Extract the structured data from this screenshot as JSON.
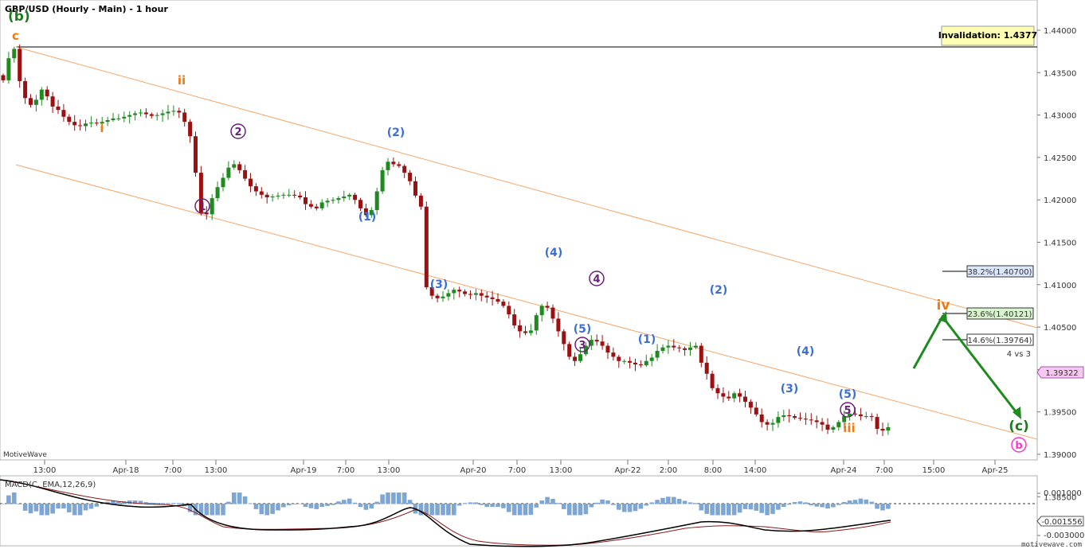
{
  "chart_data": {
    "type": "candlestick",
    "title": "GBP/USD (Hourly - Main) - 1 hour",
    "watermark": "MotiveWave",
    "footer": "motivewave.com",
    "invalidation_label": "Invalidation:  1.4377",
    "current_price_label": "1.39322",
    "y_ticks": [
      "1.44000",
      "1.43500",
      "1.43000",
      "1.42500",
      "1.42000",
      "1.41500",
      "1.41000",
      "1.40500",
      "1.40000",
      "1.39500",
      "1.39000",
      "1.38500"
    ],
    "x_ticks": [
      "13:00",
      "Apr-18",
      "7:00",
      "13:00",
      "Apr-19",
      "7:00",
      "13:00",
      "Apr-20",
      "7:00",
      "13:00",
      "Apr-22",
      "2:00",
      "8:00",
      "14:00",
      "Apr-24",
      "7:00",
      "15:00",
      "Apr-25"
    ],
    "fib_levels": [
      {
        "label": "38.2%(1.40700)",
        "price": 1.407
      },
      {
        "label": "23.6%(1.40121)",
        "price": 1.40121
      },
      {
        "label": "14.6%(1.39764)",
        "price": 1.39764
      }
    ],
    "fib_note": "4 vs 3",
    "closes": [
      1.4341,
      1.4367,
      1.4378,
      1.434,
      1.432,
      1.4312,
      1.4318,
      1.433,
      1.4322,
      1.431,
      1.4306,
      1.4298,
      1.4292,
      1.4288,
      1.4287,
      1.429,
      1.4291,
      1.429,
      1.4292,
      1.4294,
      1.4296,
      1.4296,
      1.4298,
      1.43,
      1.4302,
      1.4303,
      1.4301,
      1.4299,
      1.43,
      1.4302,
      1.4304,
      1.4305,
      1.4303,
      1.4292,
      1.4275,
      1.4232,
      1.4185,
      1.4183,
      1.4202,
      1.4215,
      1.4226,
      1.4238,
      1.4242,
      1.4235,
      1.4225,
      1.4216,
      1.421,
      1.4206,
      1.4203,
      1.4204,
      1.4205,
      1.4206,
      1.4206,
      1.4205,
      1.4203,
      1.4195,
      1.4192,
      1.419,
      1.4197,
      1.4199,
      1.42,
      1.4202,
      1.4204,
      1.4206,
      1.42,
      1.419,
      1.4182,
      1.4188,
      1.421,
      1.4235,
      1.4245,
      1.4242,
      1.424,
      1.4232,
      1.4222,
      1.4205,
      1.4192,
      1.4097,
      1.4087,
      1.4084,
      1.4086,
      1.409,
      1.4094,
      1.4092,
      1.4089,
      1.4088,
      1.409,
      1.4087,
      1.4085,
      1.4083,
      1.408,
      1.4075,
      1.4065,
      1.4052,
      1.4045,
      1.4043,
      1.4046,
      1.4064,
      1.4075,
      1.4073,
      1.406,
      1.4045,
      1.403,
      1.4015,
      1.401,
      1.4018,
      1.4028,
      1.4035,
      1.4033,
      1.4028,
      1.402,
      1.4015,
      1.401,
      1.401,
      1.4008,
      1.4006,
      1.4005,
      1.401,
      1.4014,
      1.4022,
      1.4026,
      1.4028,
      1.4026,
      1.4025,
      1.4023,
      1.4026,
      1.4028,
      1.4008,
      1.3995,
      1.3978,
      1.3972,
      1.3968,
      1.3966,
      1.3972,
      1.3968,
      1.3962,
      1.3955,
      1.3947,
      1.3938,
      1.3935,
      1.3937,
      1.3944,
      1.3946,
      1.3945,
      1.3943,
      1.3942,
      1.3941,
      1.394,
      1.3938,
      1.3935,
      1.3929,
      1.3932,
      1.3938,
      1.3945,
      1.3948,
      1.3947,
      1.3945,
      1.3945,
      1.3944,
      1.393,
      1.3928,
      1.3932
    ]
  },
  "wave_labels": {
    "b_primary": "(b)",
    "c_top": "c",
    "ii": "ii",
    "i": "i",
    "c2_1": "1",
    "c2_2": "2",
    "c2_3": "3",
    "c2_4": "4",
    "c2_5": "5",
    "m2_up": "(2)",
    "m1_a": "(1)",
    "m3_a": "(3)",
    "m4_a": "(4)",
    "m5_a": "(5)",
    "m1_b": "(1)",
    "m2_b": "(2)",
    "m3_b": "(3)",
    "m4_b": "(4)",
    "m5_b": "(5)",
    "iii": "iii",
    "iv": "iv",
    "c_primary": "(c)",
    "b_future": "b"
  },
  "macd": {
    "label": "MACD(C, EMA,12,26,9)",
    "ticks": [
      "0.001000",
      "-0.003000"
    ],
    "current_label": "-0.001556"
  },
  "colors": {
    "up": "#1f8a1f",
    "down": "#9b1111",
    "channel": "#f5a66a",
    "navy_wave": "#6a1f7a",
    "blue_wave": "#3b6fd6",
    "orange_wave": "#ee7a15",
    "green_wave": "#1f7a1f",
    "magenta_wave": "#ff33cc"
  }
}
